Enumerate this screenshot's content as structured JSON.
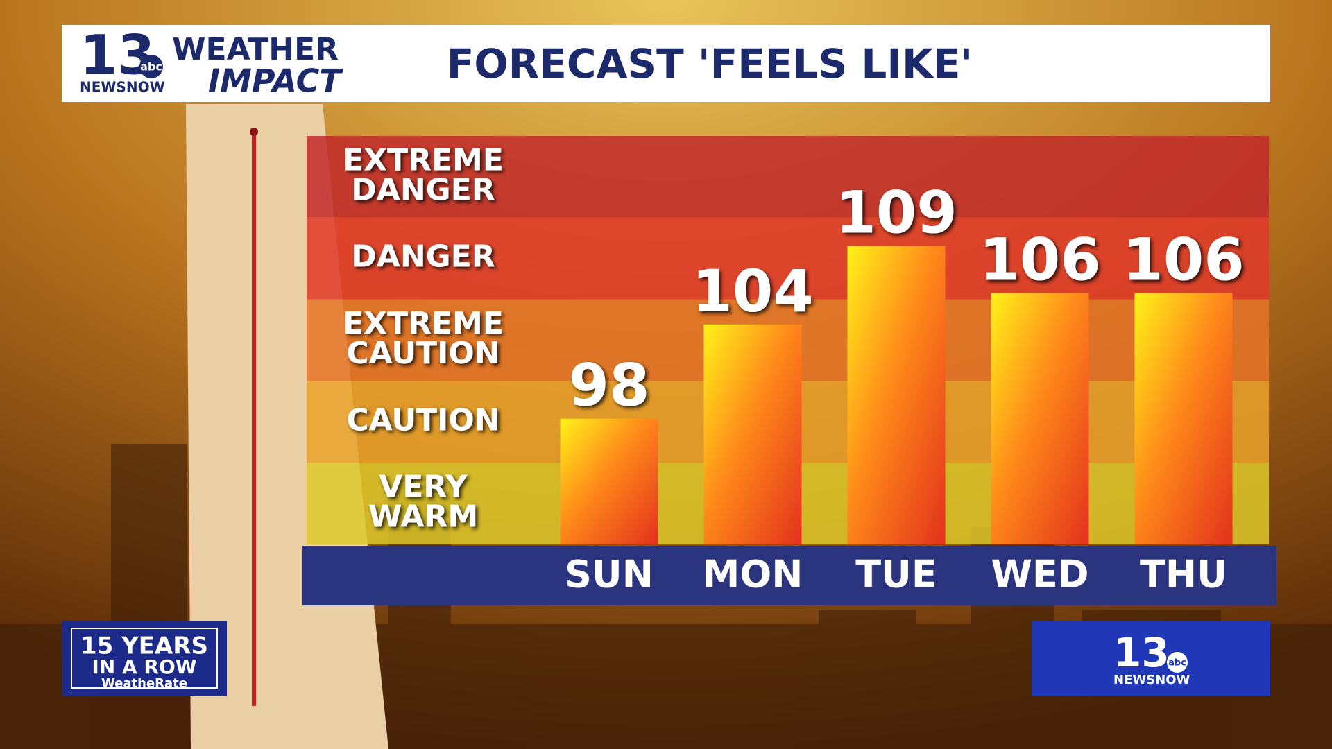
{
  "chart_data": {
    "type": "bar",
    "title": "FORECAST 'FEELS LIKE'",
    "categories": [
      "SUN",
      "MON",
      "TUE",
      "WED",
      "THU"
    ],
    "values": [
      98,
      104,
      109,
      106,
      106
    ],
    "ylim": [
      90,
      116
    ],
    "bands": [
      {
        "lines": [
          "EXTREME",
          "DANGER"
        ],
        "color": "#c22a2b"
      },
      {
        "lines": [
          "DANGER"
        ],
        "color": "#e1392a"
      },
      {
        "lines": [
          "EXTREME",
          "CAUTION"
        ],
        "color": "#e57428"
      },
      {
        "lines": [
          "CAUTION"
        ],
        "color": "#e9a22c"
      },
      {
        "lines": [
          "VERY",
          "WARM"
        ],
        "color": "#ddc82a"
      }
    ]
  },
  "branding": {
    "station": "13",
    "network": "abc",
    "newsnow": "NEWSNOW",
    "weather": "WEATHER",
    "impact": "IMPACT",
    "award_line1": "15 YEARS",
    "award_line2": "IN A ROW",
    "award_source": "WeatheRate"
  }
}
